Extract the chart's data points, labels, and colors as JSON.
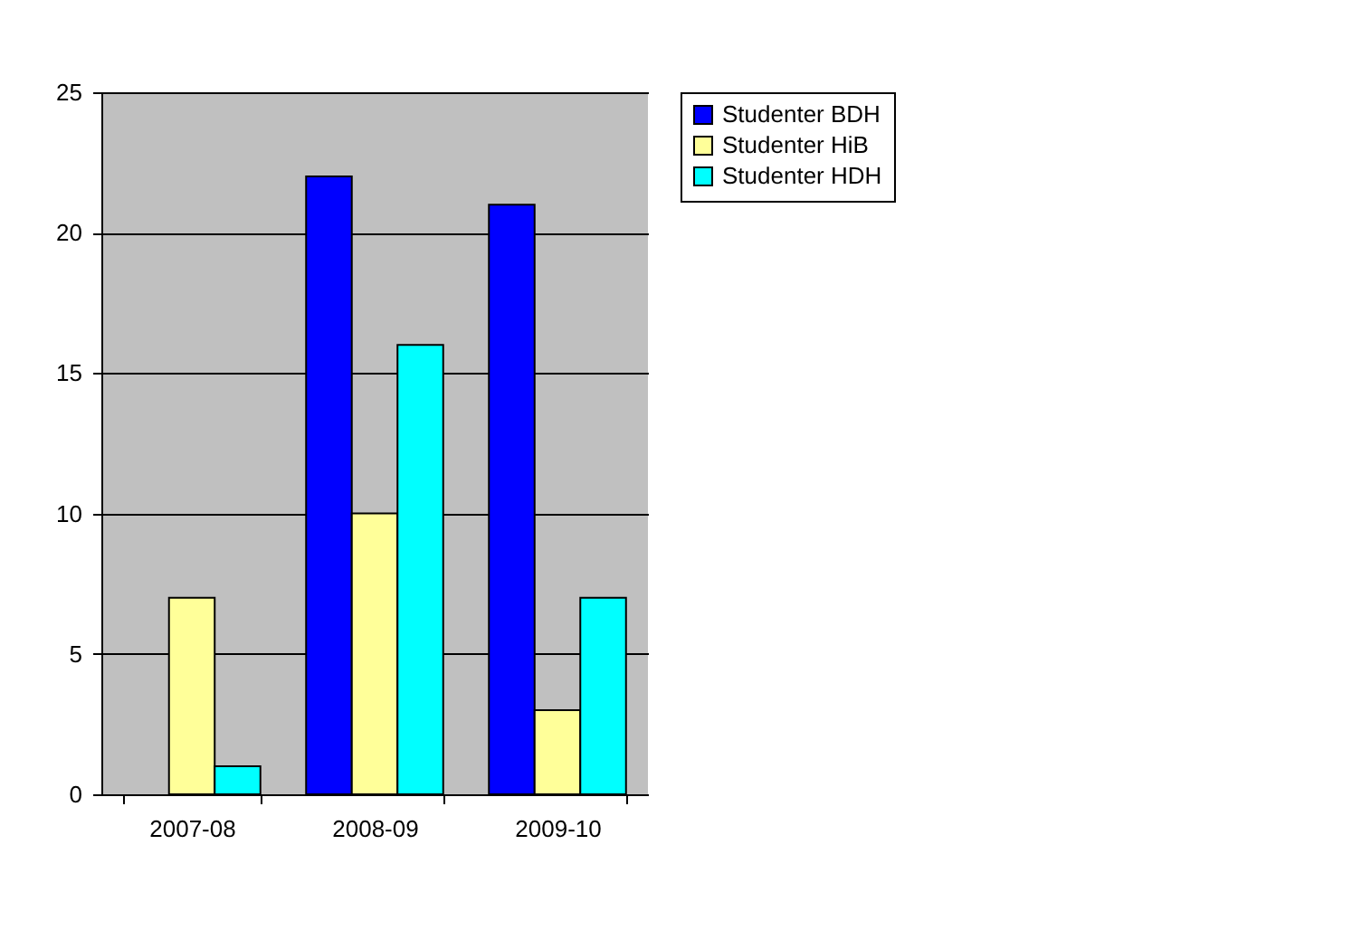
{
  "chart_data": {
    "type": "bar",
    "categories": [
      "2007-08",
      "2008-09",
      "2009-10"
    ],
    "series": [
      {
        "name": "Studenter BDH",
        "color": "#0000ff",
        "values": [
          null,
          22,
          21
        ]
      },
      {
        "name": "Studenter HiB",
        "color": "#ffff99",
        "values": [
          7,
          10,
          3
        ]
      },
      {
        "name": "Studenter HDH",
        "color": "#00ffff",
        "values": [
          1,
          16,
          7
        ]
      }
    ],
    "ylim": [
      0,
      25
    ],
    "yticks": [
      0,
      5,
      10,
      15,
      20,
      25
    ],
    "grid": "y",
    "legend": "right"
  }
}
